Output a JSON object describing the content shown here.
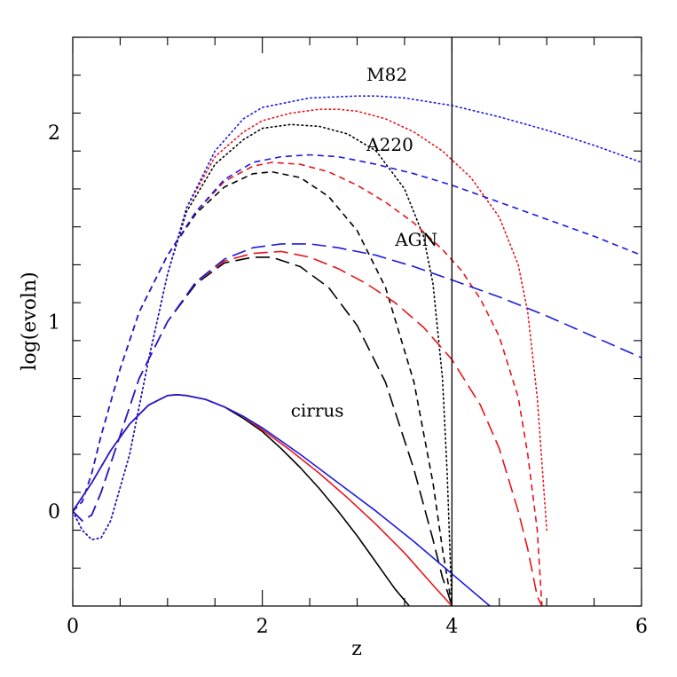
{
  "chart_data": {
    "type": "line",
    "title": "",
    "xlabel": "z",
    "ylabel": "log(evoln)",
    "xlim": [
      0,
      6
    ],
    "ylim": [
      -0.5,
      2.5
    ],
    "x_ticks": [
      0,
      2,
      4,
      6
    ],
    "y_ticks": [
      0,
      1,
      2
    ],
    "grid": false,
    "legend": "none",
    "colors": {
      "black": "#000000",
      "red": "#e8141a",
      "blue": "#1a1ae0"
    },
    "annotations": [
      {
        "text": "M82",
        "x": 3.1,
        "y": 2.27
      },
      {
        "text": "A220",
        "x": 3.1,
        "y": 1.9
      },
      {
        "text": "AGN",
        "x": 3.4,
        "y": 1.4
      },
      {
        "text": "cirrus",
        "x": 2.3,
        "y": 0.5
      }
    ],
    "vlines": [
      4
    ],
    "series": [
      {
        "group": "M82",
        "color": "black",
        "style": "dotted",
        "x": [
          0,
          0.1,
          0.2,
          0.3,
          0.4,
          0.6,
          0.8,
          1.0,
          1.2,
          1.5,
          1.8,
          2.0,
          2.3,
          2.6,
          2.9,
          3.2,
          3.5,
          3.7,
          3.8,
          3.9,
          3.95,
          4.0
        ],
        "y": [
          0,
          -0.1,
          -0.15,
          -0.14,
          -0.05,
          0.3,
          0.8,
          1.25,
          1.58,
          1.83,
          1.96,
          2.02,
          2.04,
          2.03,
          1.99,
          1.9,
          1.7,
          1.45,
          1.2,
          0.7,
          0.2,
          -0.5
        ]
      },
      {
        "group": "M82",
        "color": "red",
        "style": "dotted",
        "x": [
          0,
          0.1,
          0.2,
          0.3,
          0.4,
          0.6,
          0.8,
          1.0,
          1.2,
          1.5,
          1.8,
          2.0,
          2.3,
          2.6,
          2.8,
          3.0,
          3.3,
          3.6,
          3.9,
          4.2,
          4.5,
          4.7,
          4.8,
          4.9,
          5.0
        ],
        "y": [
          0,
          -0.1,
          -0.15,
          -0.14,
          -0.05,
          0.3,
          0.8,
          1.25,
          1.6,
          1.87,
          2.0,
          2.06,
          2.1,
          2.12,
          2.12,
          2.11,
          2.07,
          2.0,
          1.9,
          1.76,
          1.55,
          1.3,
          1.05,
          0.6,
          -0.1
        ]
      },
      {
        "group": "M82",
        "color": "blue",
        "style": "dotted",
        "x": [
          0,
          0.1,
          0.2,
          0.3,
          0.4,
          0.6,
          0.8,
          1.0,
          1.2,
          1.5,
          1.8,
          2.0,
          2.5,
          3.0,
          3.2,
          3.5,
          4.0,
          4.5,
          5.0,
          5.5,
          6.0
        ],
        "y": [
          0,
          -0.1,
          -0.15,
          -0.14,
          -0.05,
          0.3,
          0.8,
          1.25,
          1.6,
          1.9,
          2.07,
          2.13,
          2.18,
          2.19,
          2.19,
          2.18,
          2.14,
          2.08,
          2.01,
          1.93,
          1.84
        ]
      },
      {
        "group": "A220",
        "color": "black",
        "style": "dashed",
        "x": [
          0,
          0.1,
          0.2,
          0.3,
          0.5,
          0.7,
          1.0,
          1.3,
          1.6,
          1.9,
          2.1,
          2.4,
          2.7,
          3.0,
          3.3,
          3.6,
          3.8,
          3.9,
          4.0
        ],
        "y": [
          0,
          0.05,
          0.2,
          0.4,
          0.75,
          1.05,
          1.35,
          1.57,
          1.71,
          1.78,
          1.79,
          1.76,
          1.66,
          1.48,
          1.18,
          0.68,
          0.15,
          -0.2,
          -0.5
        ]
      },
      {
        "group": "A220",
        "color": "red",
        "style": "dashed",
        "x": [
          0,
          0.1,
          0.2,
          0.3,
          0.5,
          0.7,
          1.0,
          1.3,
          1.6,
          1.9,
          2.1,
          2.4,
          2.7,
          3.0,
          3.3,
          3.6,
          3.9,
          4.1,
          4.3,
          4.5,
          4.7,
          4.8,
          4.9,
          4.95
        ],
        "y": [
          0,
          0.05,
          0.2,
          0.4,
          0.75,
          1.05,
          1.35,
          1.58,
          1.74,
          1.82,
          1.84,
          1.83,
          1.79,
          1.72,
          1.63,
          1.52,
          1.38,
          1.27,
          1.12,
          0.92,
          0.6,
          0.3,
          -0.1,
          -0.5
        ]
      },
      {
        "group": "A220",
        "color": "blue",
        "style": "dashed",
        "x": [
          0,
          0.1,
          0.2,
          0.3,
          0.5,
          0.7,
          1.0,
          1.3,
          1.6,
          1.9,
          2.2,
          2.5,
          2.8,
          3.2,
          3.6,
          4.0,
          4.5,
          5.0,
          5.5,
          6.0
        ],
        "y": [
          0,
          0.05,
          0.2,
          0.4,
          0.75,
          1.05,
          1.35,
          1.58,
          1.75,
          1.84,
          1.87,
          1.88,
          1.87,
          1.83,
          1.78,
          1.72,
          1.63,
          1.54,
          1.45,
          1.35
        ]
      },
      {
        "group": "AGN",
        "color": "black",
        "style": "long-dashed",
        "x": [
          0,
          0.1,
          0.2,
          0.3,
          0.5,
          0.7,
          1.0,
          1.3,
          1.6,
          1.9,
          2.1,
          2.4,
          2.7,
          3.0,
          3.3,
          3.6,
          3.8,
          3.9,
          3.95,
          4.0
        ],
        "y": [
          0,
          -0.05,
          -0.02,
          0.1,
          0.4,
          0.7,
          1.0,
          1.2,
          1.31,
          1.34,
          1.34,
          1.29,
          1.18,
          0.98,
          0.68,
          0.22,
          -0.15,
          -0.35,
          -0.42,
          -0.5
        ]
      },
      {
        "group": "AGN",
        "color": "red",
        "style": "long-dashed",
        "x": [
          0,
          0.1,
          0.2,
          0.3,
          0.5,
          0.7,
          1.0,
          1.3,
          1.6,
          1.9,
          2.2,
          2.5,
          2.8,
          3.1,
          3.4,
          3.7,
          4.0,
          4.3,
          4.5,
          4.7,
          4.8,
          4.9,
          4.95
        ],
        "y": [
          0,
          -0.05,
          -0.02,
          0.1,
          0.4,
          0.7,
          1.0,
          1.21,
          1.32,
          1.36,
          1.37,
          1.34,
          1.28,
          1.2,
          1.1,
          0.97,
          0.8,
          0.56,
          0.33,
          0.0,
          -0.2,
          -0.45,
          -0.5
        ]
      },
      {
        "group": "AGN",
        "color": "blue",
        "style": "long-dashed",
        "x": [
          0,
          0.1,
          0.2,
          0.3,
          0.5,
          0.7,
          1.0,
          1.3,
          1.6,
          1.9,
          2.2,
          2.5,
          2.8,
          3.2,
          3.6,
          4.0,
          4.5,
          5.0,
          5.5,
          6.0
        ],
        "y": [
          0,
          -0.05,
          -0.02,
          0.1,
          0.4,
          0.7,
          1.0,
          1.21,
          1.33,
          1.39,
          1.41,
          1.41,
          1.39,
          1.35,
          1.29,
          1.22,
          1.13,
          1.03,
          0.92,
          0.81
        ]
      },
      {
        "group": "cirrus",
        "color": "black",
        "style": "solid",
        "x": [
          0,
          0.2,
          0.4,
          0.6,
          0.8,
          1.0,
          1.1,
          1.2,
          1.4,
          1.6,
          1.8,
          2.0,
          2.2,
          2.4,
          2.6,
          2.8,
          3.0,
          3.2,
          3.4,
          3.55
        ],
        "y": [
          0,
          0.15,
          0.32,
          0.46,
          0.56,
          0.61,
          0.615,
          0.61,
          0.59,
          0.55,
          0.49,
          0.42,
          0.33,
          0.23,
          0.12,
          0.0,
          -0.13,
          -0.27,
          -0.41,
          -0.5
        ]
      },
      {
        "group": "cirrus",
        "color": "red",
        "style": "solid",
        "x": [
          0,
          0.2,
          0.4,
          0.6,
          0.8,
          1.0,
          1.1,
          1.2,
          1.4,
          1.6,
          1.8,
          2.0,
          2.3,
          2.6,
          2.9,
          3.2,
          3.5,
          3.8,
          4.0
        ],
        "y": [
          0,
          0.15,
          0.32,
          0.46,
          0.56,
          0.61,
          0.615,
          0.61,
          0.59,
          0.55,
          0.5,
          0.43,
          0.32,
          0.2,
          0.07,
          -0.07,
          -0.22,
          -0.39,
          -0.5
        ]
      },
      {
        "group": "cirrus",
        "color": "blue",
        "style": "solid",
        "x": [
          0,
          0.2,
          0.4,
          0.6,
          0.8,
          1.0,
          1.1,
          1.2,
          1.4,
          1.6,
          1.8,
          2.0,
          2.4,
          2.8,
          3.2,
          3.6,
          4.0,
          4.4
        ],
        "y": [
          0,
          0.15,
          0.32,
          0.46,
          0.56,
          0.61,
          0.615,
          0.61,
          0.59,
          0.55,
          0.5,
          0.44,
          0.3,
          0.15,
          0.0,
          -0.16,
          -0.33,
          -0.5
        ]
      }
    ]
  }
}
